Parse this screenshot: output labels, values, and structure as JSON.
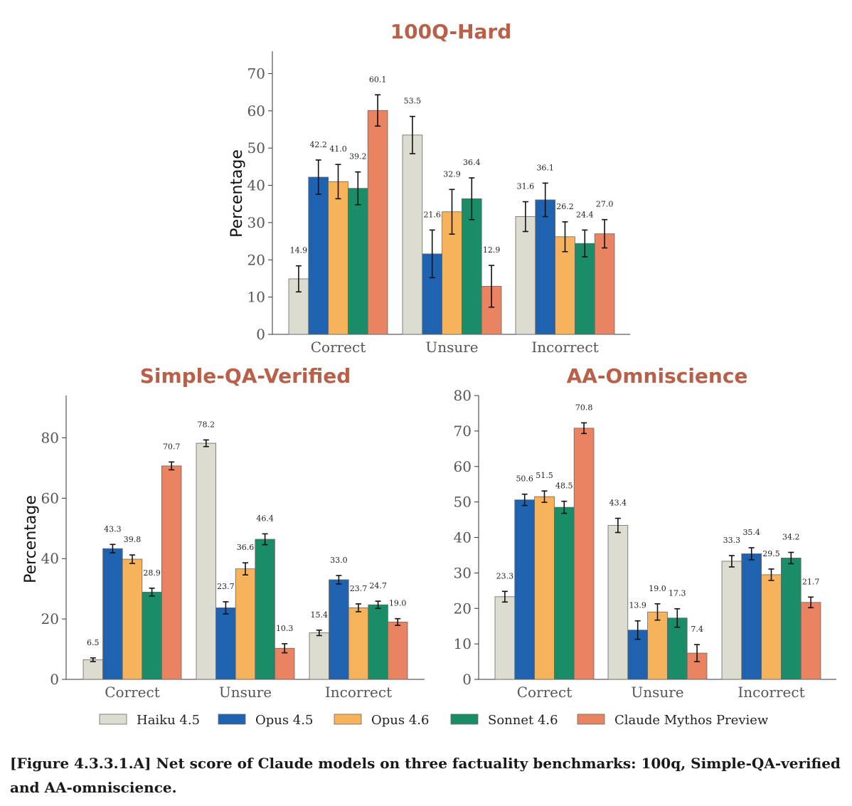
{
  "legend": [
    {
      "name": "Haiku 4.5",
      "color": "#dcdcd0"
    },
    {
      "name": "Opus 4.5",
      "color": "#1f63b0"
    },
    {
      "name": "Opus 4.6",
      "color": "#f7b35c"
    },
    {
      "name": "Sonnet 4.6",
      "color": "#1a8c68"
    },
    {
      "name": "Claude Mythos Preview",
      "color": "#e98362"
    }
  ],
  "caption": "[Figure 4.3.3.1.A] Net score of Claude models on three factuality benchmarks: 100q, Simple-QA-verified and AA-omniscience.",
  "chart_data": [
    {
      "type": "bar",
      "title": "100Q-Hard",
      "ylabel": "Percentage",
      "xlabel": "",
      "categories": [
        "Correct",
        "Unsure",
        "Incorrect"
      ],
      "ylim": [
        0,
        76
      ],
      "yticks": [
        0,
        10,
        20,
        30,
        40,
        50,
        60,
        70
      ],
      "grid": false,
      "series": [
        {
          "name": "Haiku 4.5",
          "values": [
            14.9,
            53.5,
            31.6
          ],
          "err": [
            3.5,
            5.0,
            4.0
          ]
        },
        {
          "name": "Opus 4.5",
          "values": [
            42.2,
            21.6,
            36.1
          ],
          "err": [
            4.6,
            6.4,
            4.5
          ]
        },
        {
          "name": "Opus 4.6",
          "values": [
            41.0,
            32.9,
            26.2
          ],
          "err": [
            4.6,
            6.0,
            4.0
          ]
        },
        {
          "name": "Sonnet 4.6",
          "values": [
            39.2,
            36.4,
            24.4
          ],
          "err": [
            4.4,
            5.6,
            3.6
          ]
        },
        {
          "name": "Claude Mythos Preview",
          "values": [
            60.1,
            12.9,
            27.0
          ],
          "err": [
            4.2,
            5.6,
            3.8
          ]
        }
      ],
      "labels": [
        [
          "14.9",
          "42.2",
          "41.0",
          "39.2",
          "60.1"
        ],
        [
          "53.5",
          "21.6",
          "32.9",
          "36.4",
          "12.9"
        ],
        [
          "31.6",
          "36.1",
          "26.2",
          "24.4",
          "27.0"
        ]
      ]
    },
    {
      "type": "bar",
      "title": "Simple-QA-Verified",
      "ylabel": "Percentage",
      "xlabel": "",
      "categories": [
        "Correct",
        "Unsure",
        "Incorrect"
      ],
      "ylim": [
        0,
        94
      ],
      "yticks": [
        0,
        20,
        40,
        60,
        80
      ],
      "grid": false,
      "series": [
        {
          "name": "Haiku 4.5",
          "values": [
            6.5,
            78.2,
            15.4
          ],
          "err": [
            0.6,
            1.1,
            0.9
          ]
        },
        {
          "name": "Opus 4.5",
          "values": [
            43.3,
            23.7,
            33.0
          ],
          "err": [
            1.4,
            2.0,
            1.4
          ]
        },
        {
          "name": "Opus 4.6",
          "values": [
            39.8,
            36.6,
            23.7
          ],
          "err": [
            1.4,
            2.0,
            1.3
          ]
        },
        {
          "name": "Sonnet 4.6",
          "values": [
            28.9,
            46.4,
            24.7
          ],
          "err": [
            1.3,
            1.8,
            1.2
          ]
        },
        {
          "name": "Claude Mythos Preview",
          "values": [
            70.7,
            10.3,
            19.0
          ],
          "err": [
            1.3,
            1.5,
            1.1
          ]
        }
      ],
      "labels": [
        [
          "6.5",
          "43.3",
          "39.8",
          "28.9",
          "70.7"
        ],
        [
          "78.2",
          "23.7",
          "36.6",
          "46.4",
          "10.3"
        ],
        [
          "15.4",
          "33.0",
          "23.7",
          "24.7",
          "19.0"
        ]
      ]
    },
    {
      "type": "bar",
      "title": "AA-Omniscience",
      "ylabel": "",
      "xlabel": "",
      "categories": [
        "Correct",
        "Unsure",
        "Incorrect"
      ],
      "ylim": [
        0,
        80
      ],
      "yticks": [
        0,
        10,
        20,
        30,
        40,
        50,
        60,
        70,
        80
      ],
      "grid": false,
      "series": [
        {
          "name": "Haiku 4.5",
          "values": [
            23.3,
            43.4,
            33.3
          ],
          "err": [
            1.5,
            2.0,
            1.6
          ]
        },
        {
          "name": "Opus 4.5",
          "values": [
            50.6,
            13.9,
            35.4
          ],
          "err": [
            1.6,
            2.6,
            1.7
          ]
        },
        {
          "name": "Opus 4.6",
          "values": [
            51.5,
            19.0,
            29.5
          ],
          "err": [
            1.6,
            2.3,
            1.6
          ]
        },
        {
          "name": "Sonnet 4.6",
          "values": [
            48.5,
            17.3,
            34.2
          ],
          "err": [
            1.7,
            2.6,
            1.6
          ]
        },
        {
          "name": "Claude Mythos Preview",
          "values": [
            70.8,
            7.4,
            21.7
          ],
          "err": [
            1.5,
            2.4,
            1.5
          ]
        }
      ],
      "labels": [
        [
          "23.3",
          "50.6",
          "51.5",
          "48.5",
          "70.8"
        ],
        [
          "43.4",
          "13.9",
          "19.0",
          "17.3",
          "7.4"
        ],
        [
          "33.3",
          "35.4",
          "29.5",
          "34.2",
          "21.7"
        ]
      ]
    }
  ]
}
